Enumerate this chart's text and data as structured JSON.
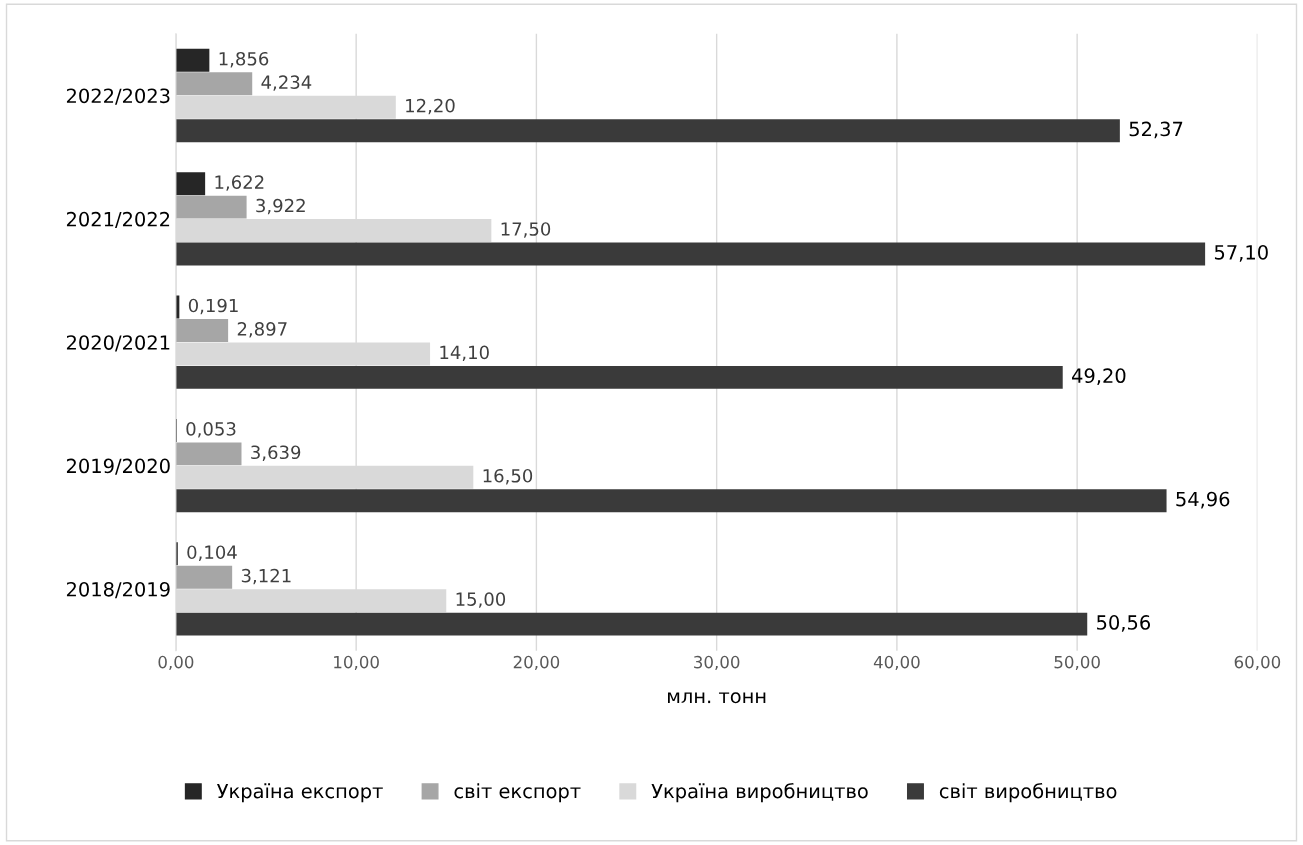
{
  "chart_data": {
    "type": "bar",
    "orientation": "horizontal",
    "xlabel": "млн. тонн",
    "categories": [
      "2022/2023",
      "2021/2022",
      "2020/2021",
      "2019/2020",
      "2018/2019"
    ],
    "series": [
      {
        "name": "Україна експорт",
        "color": "#262626",
        "values": [
          1.856,
          1.622,
          0.191,
          0.053,
          0.104
        ],
        "value_labels": [
          "1,856",
          "1,622",
          "0,191",
          "0,053",
          "0,104"
        ]
      },
      {
        "name": "світ експорт",
        "color": "#a6a6a6",
        "values": [
          4.234,
          3.922,
          2.897,
          3.639,
          3.121
        ],
        "value_labels": [
          "4,234",
          "3,922",
          "2,897",
          "3,639",
          "3,121"
        ]
      },
      {
        "name": "Україна виробництво",
        "color": "#d9d9d9",
        "values": [
          12.2,
          17.5,
          14.1,
          16.5,
          15.0
        ],
        "value_labels": [
          "12,20",
          "17,50",
          "14,10",
          "16,50",
          "15,00"
        ]
      },
      {
        "name": "світ виробництво",
        "color": "#3a3a3a",
        "values": [
          52.37,
          57.1,
          49.2,
          54.96,
          50.56
        ],
        "value_labels": [
          "52,37",
          "57,10",
          "49,20",
          "54,96",
          "50,56"
        ]
      }
    ],
    "xlim": [
      0,
      60
    ],
    "xticks": [
      {
        "value": 0,
        "label": "0,00"
      },
      {
        "value": 10,
        "label": "10,00"
      },
      {
        "value": 20,
        "label": "20,00"
      },
      {
        "value": 30,
        "label": "30,00"
      },
      {
        "value": 40,
        "label": "40,00"
      },
      {
        "value": 50,
        "label": "50,00"
      },
      {
        "value": 60,
        "label": "60,00"
      }
    ],
    "grid": "x",
    "legend": "bottom"
  }
}
